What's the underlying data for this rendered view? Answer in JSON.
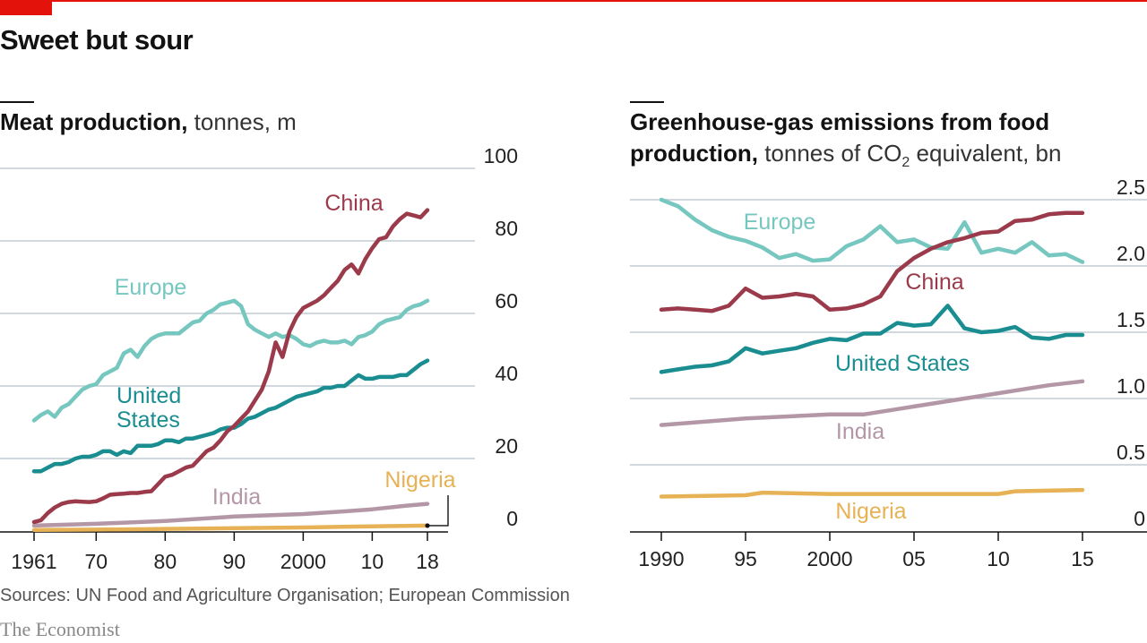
{
  "brand_color": "#e3120b",
  "title": "Sweet but sour",
  "source": "Sources: UN Food and Agriculture Organisation; European Commission",
  "brand": "The Economist",
  "chart_data": [
    {
      "type": "line",
      "title_bold": "Meat production,",
      "title_rest": " tonnes, m",
      "xlabel": "",
      "ylabel": "",
      "xlim": [
        1961,
        2018
      ],
      "ylim": [
        0,
        100
      ],
      "yticks": [
        0,
        20,
        40,
        60,
        80,
        100
      ],
      "xticks": [
        1961,
        1970,
        1980,
        1990,
        2000,
        2010,
        2018
      ],
      "xtick_labels": [
        "1961",
        "70",
        "80",
        "90",
        "2000",
        "10",
        "18"
      ],
      "grid": true,
      "series": [
        {
          "name": "China",
          "label_lines": [
            "China"
          ],
          "color": "#9b3a4a",
          "x": [
            1961,
            1962,
            1963,
            1964,
            1965,
            1966,
            1967,
            1968,
            1969,
            1970,
            1971,
            1972,
            1973,
            1974,
            1975,
            1976,
            1977,
            1978,
            1979,
            1980,
            1981,
            1982,
            1983,
            1984,
            1985,
            1986,
            1987,
            1988,
            1989,
            1990,
            1991,
            1992,
            1993,
            1994,
            1995,
            1996,
            1997,
            1998,
            1999,
            2000,
            2001,
            2002,
            2003,
            2004,
            2005,
            2006,
            2007,
            2008,
            2009,
            2010,
            2011,
            2012,
            2013,
            2014,
            2015,
            2016,
            2017,
            2018
          ],
          "y": [
            2.5,
            3,
            5,
            6.5,
            7.5,
            8,
            8.2,
            8.1,
            8,
            8.2,
            9,
            10,
            10.2,
            10.3,
            10.5,
            10.5,
            10.8,
            11,
            13,
            15,
            15.5,
            16.5,
            17.5,
            18,
            20,
            22,
            23,
            25,
            27.5,
            29,
            31,
            33,
            36,
            39,
            44,
            52,
            48,
            55,
            59,
            61.5,
            62.5,
            63.5,
            65,
            67,
            69,
            72,
            73.5,
            71,
            75,
            78,
            80.5,
            81,
            84,
            86,
            87.5,
            87,
            86.5,
            88.5
          ]
        },
        {
          "name": "Europe",
          "label_lines": [
            "Europe"
          ],
          "color": "#76c7c0",
          "x": [
            1961,
            1962,
            1963,
            1964,
            1965,
            1966,
            1967,
            1968,
            1969,
            1970,
            1971,
            1972,
            1973,
            1974,
            1975,
            1976,
            1977,
            1978,
            1979,
            1980,
            1981,
            1982,
            1983,
            1984,
            1985,
            1986,
            1987,
            1988,
            1989,
            1990,
            1991,
            1992,
            1993,
            1994,
            1995,
            1996,
            1997,
            1998,
            1999,
            2000,
            2001,
            2002,
            2003,
            2004,
            2005,
            2006,
            2007,
            2008,
            2009,
            2010,
            2011,
            2012,
            2013,
            2014,
            2015,
            2016,
            2017,
            2018
          ],
          "y": [
            30.5,
            32,
            33,
            31.5,
            34,
            35,
            37,
            39,
            40,
            40.5,
            43,
            44,
            45,
            49,
            50,
            48,
            51,
            53,
            54,
            54.5,
            54.5,
            54.5,
            56,
            57.5,
            58,
            60,
            61,
            62.5,
            63,
            63.5,
            62,
            57,
            55.5,
            54.5,
            53.5,
            54.5,
            53.5,
            54,
            53,
            51.5,
            51,
            52,
            52.5,
            52,
            52,
            52.5,
            51.5,
            53.5,
            54,
            55,
            57,
            58,
            58.5,
            59,
            61,
            62,
            62.5,
            63.5
          ]
        },
        {
          "name": "United States",
          "label_lines": [
            "United",
            "States"
          ],
          "color": "#1a8d91",
          "x": [
            1961,
            1962,
            1963,
            1964,
            1965,
            1966,
            1967,
            1968,
            1969,
            1970,
            1971,
            1972,
            1973,
            1974,
            1975,
            1976,
            1977,
            1978,
            1979,
            1980,
            1981,
            1982,
            1983,
            1984,
            1985,
            1986,
            1987,
            1988,
            1989,
            1990,
            1991,
            1992,
            1993,
            1994,
            1995,
            1996,
            1997,
            1998,
            1999,
            2000,
            2001,
            2002,
            2003,
            2004,
            2005,
            2006,
            2007,
            2008,
            2009,
            2010,
            2011,
            2012,
            2013,
            2014,
            2015,
            2016,
            2017,
            2018
          ],
          "y": [
            16.5,
            16.5,
            17.5,
            18.5,
            18.5,
            19,
            20,
            20.5,
            20.5,
            21,
            22,
            22,
            21,
            22,
            21.5,
            23.5,
            23.5,
            23.5,
            24,
            25,
            25,
            24.5,
            25.5,
            25.5,
            26,
            26.5,
            27,
            28,
            28.5,
            28.5,
            29.5,
            31,
            31.5,
            32.5,
            33.5,
            34,
            35,
            36,
            37,
            37.5,
            38,
            38.5,
            39.5,
            39.5,
            40,
            40,
            41.5,
            43,
            42,
            42,
            42.5,
            42.5,
            42.5,
            43,
            43,
            44.5,
            46,
            47
          ]
        },
        {
          "name": "India",
          "label_lines": [
            "India"
          ],
          "color": "#b497a6",
          "x": [
            1961,
            1970,
            1980,
            1990,
            2000,
            2005,
            2010,
            2015,
            2018
          ],
          "y": [
            1.5,
            2,
            2.8,
            4,
            4.7,
            5.3,
            6,
            7,
            7.5
          ]
        },
        {
          "name": "Nigeria",
          "label_lines": [
            "Nigeria"
          ],
          "color": "#e6b255",
          "x": [
            1961,
            1970,
            1980,
            1990,
            2000,
            2010,
            2018
          ],
          "y": [
            0.3,
            0.4,
            0.6,
            0.8,
            1,
            1.3,
            1.5
          ]
        }
      ]
    },
    {
      "type": "line",
      "title_bold": "Greenhouse-gas emissions from food",
      "title_bold2": "production,",
      "title_rest": " tonnes of CO",
      "title_sub": "2",
      "title_rest2": " equivalent, bn",
      "xlabel": "",
      "ylabel": "",
      "xlim": [
        1990,
        2015
      ],
      "ylim": [
        0,
        2.5
      ],
      "yticks": [
        0,
        0.5,
        1.0,
        1.5,
        2.0,
        2.5
      ],
      "ytick_labels": [
        "0",
        "0.5",
        "1.0",
        "1.5",
        "2.0",
        "2.5"
      ],
      "xticks": [
        1990,
        1995,
        2000,
        2005,
        2010,
        2015
      ],
      "xtick_labels": [
        "1990",
        "95",
        "2000",
        "05",
        "10",
        "15"
      ],
      "grid": true,
      "series": [
        {
          "name": "Europe",
          "label_lines": [
            "Europe"
          ],
          "color": "#76c7c0",
          "x": [
            1990,
            1991,
            1992,
            1993,
            1994,
            1995,
            1996,
            1997,
            1998,
            1999,
            2000,
            2001,
            2002,
            2003,
            2004,
            2005,
            2006,
            2007,
            2008,
            2009,
            2010,
            2011,
            2012,
            2013,
            2014,
            2015
          ],
          "y": [
            2.5,
            2.45,
            2.35,
            2.27,
            2.22,
            2.19,
            2.14,
            2.06,
            2.09,
            2.04,
            2.05,
            2.15,
            2.2,
            2.3,
            2.18,
            2.2,
            2.14,
            2.13,
            2.33,
            2.1,
            2.13,
            2.1,
            2.18,
            2.08,
            2.09,
            2.03
          ]
        },
        {
          "name": "China",
          "label_lines": [
            "China"
          ],
          "color": "#9b3a4a",
          "x": [
            1990,
            1991,
            1992,
            1993,
            1994,
            1995,
            1996,
            1997,
            1998,
            1999,
            2000,
            2001,
            2002,
            2003,
            2004,
            2005,
            2006,
            2007,
            2008,
            2009,
            2010,
            2011,
            2012,
            2013,
            2014,
            2015
          ],
          "y": [
            1.67,
            1.68,
            1.67,
            1.66,
            1.7,
            1.83,
            1.76,
            1.77,
            1.79,
            1.77,
            1.67,
            1.68,
            1.71,
            1.77,
            1.96,
            2.06,
            2.13,
            2.18,
            2.21,
            2.25,
            2.26,
            2.34,
            2.35,
            2.39,
            2.4,
            2.4
          ]
        },
        {
          "name": "United States",
          "label_lines": [
            "United States"
          ],
          "color": "#1a8d91",
          "x": [
            1990,
            1991,
            1992,
            1993,
            1994,
            1995,
            1996,
            1997,
            1998,
            1999,
            2000,
            2001,
            2002,
            2003,
            2004,
            2005,
            2006,
            2007,
            2008,
            2009,
            2010,
            2011,
            2012,
            2013,
            2014,
            2015
          ],
          "y": [
            1.2,
            1.22,
            1.24,
            1.25,
            1.28,
            1.38,
            1.34,
            1.36,
            1.38,
            1.42,
            1.45,
            1.44,
            1.49,
            1.49,
            1.57,
            1.55,
            1.56,
            1.7,
            1.53,
            1.5,
            1.51,
            1.54,
            1.46,
            1.45,
            1.48,
            1.48
          ]
        },
        {
          "name": "India",
          "label_lines": [
            "India"
          ],
          "color": "#b497a6",
          "x": [
            1990,
            1995,
            2000,
            2002,
            2005,
            2008,
            2010,
            2013,
            2015
          ],
          "y": [
            0.8,
            0.85,
            0.88,
            0.88,
            0.94,
            1.0,
            1.04,
            1.1,
            1.13
          ]
        },
        {
          "name": "Nigeria",
          "label_lines": [
            "Nigeria"
          ],
          "color": "#e6b255",
          "x": [
            1990,
            1995,
            1996,
            2000,
            2005,
            2010,
            2011,
            2015
          ],
          "y": [
            0.26,
            0.27,
            0.29,
            0.28,
            0.28,
            0.28,
            0.3,
            0.31
          ]
        }
      ]
    }
  ]
}
